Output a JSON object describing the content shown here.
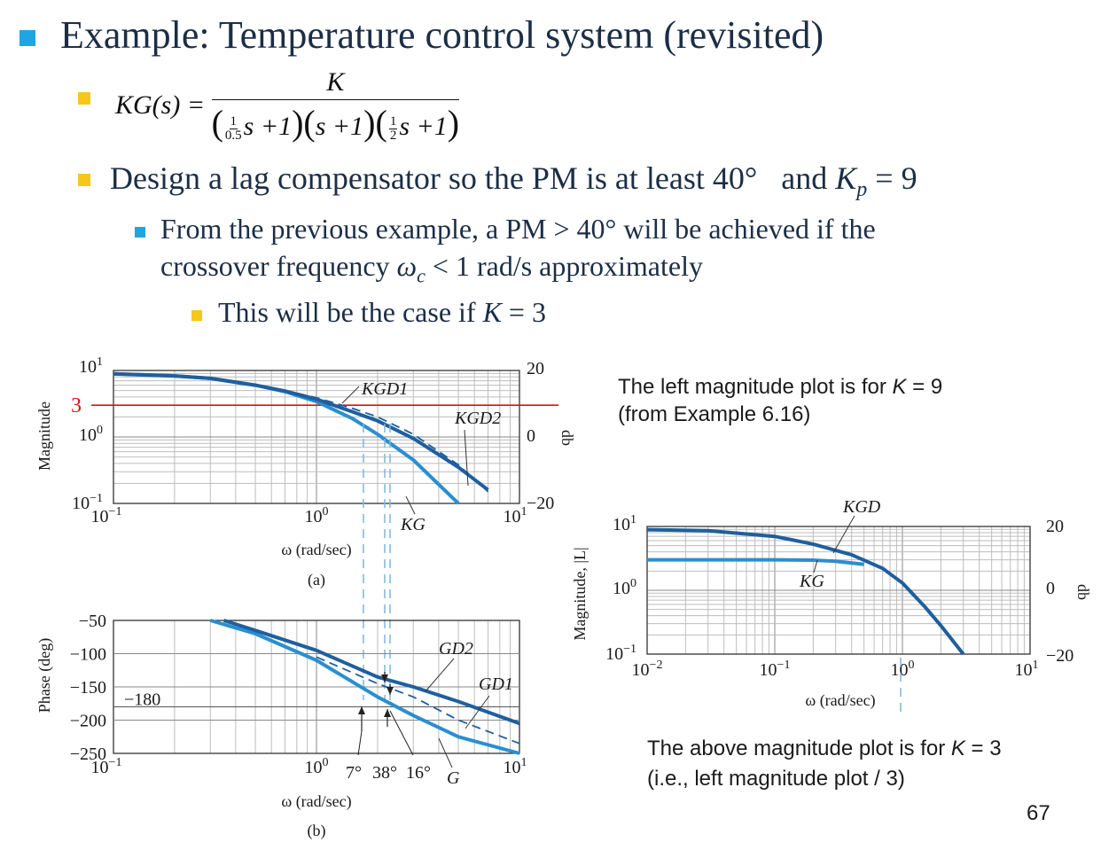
{
  "colors": {
    "bullet_main": "#1fa5e2",
    "bullet_sub": "#f6c71a",
    "text": "#1c2e46",
    "dark_curve": "#1f5f9e",
    "light_curve": "#2a8fcf",
    "red": "#e11010"
  },
  "slide": {
    "title": "Example:  Temperature control system (revisited)",
    "formula": {
      "lhs": "KG(s) =",
      "numerator": "K",
      "den1_num": "1",
      "den1_den": "0.5",
      "den_s1": "s +1",
      "den2": "s +1",
      "den3_num": "1",
      "den3_den": "2",
      "den_s3": "s +1"
    },
    "bullet2_a": "Design a lag compensator so the PM is at least 40°",
    "bullet2_b": "and ",
    "bullet2_kp": "K",
    "bullet2_p": "p",
    "bullet2_c": " = 9",
    "bullet3_line1": "From the previous example, a PM > 40°   will be achieved if the",
    "bullet3_line2a": "crossover frequency ",
    "bullet3_omega": "ω",
    "bullet3_c": "c",
    "bullet3_line2b": " < 1 rad/s approximately",
    "bullet4_a": "This will be the case if ",
    "bullet4_k": "K",
    "bullet4_b": " = 3",
    "note1_line1_a": "The left magnitude plot is for ",
    "note1_k": "K",
    "note1_line1_b": " = 9",
    "note1_line2": "(from Example 6.16)",
    "note2_line1_a": "The above magnitude plot is for ",
    "note2_k": "K",
    "note2_line1_b": " = 3",
    "note2_line2": "(i.e., left magnitude plot / 3)",
    "page_number": "67"
  },
  "chart_data": [
    {
      "id": "a",
      "type": "line",
      "scale": "log-log",
      "caption": "(a)",
      "xlabel": "ω (rad/sec)",
      "ylabel": "Magnitude",
      "ylabel_right": "db",
      "xlim": [
        0.1,
        10
      ],
      "ylim": [
        0.1,
        10
      ],
      "x_ticks": [
        {
          "base": "10",
          "exp": "−1"
        },
        {
          "base": "10",
          "exp": "0"
        },
        {
          "base": "10",
          "exp": "1"
        }
      ],
      "y_ticks": [
        {
          "base": "10",
          "exp": "1"
        },
        {
          "base": "10",
          "exp": "0"
        },
        {
          "base": "10",
          "exp": "−1"
        }
      ],
      "db_ticks": [
        "20",
        "0",
        "−20"
      ],
      "reference_line": {
        "value": 3,
        "label": "3",
        "color": "#e11010"
      },
      "series": [
        {
          "name": "KG",
          "style": "solid",
          "x": [
            0.1,
            0.2,
            0.3,
            0.5,
            0.7,
            1.0,
            1.5,
            2.0,
            3.0,
            5.0
          ],
          "y": [
            8.9,
            8.3,
            7.6,
            6.0,
            4.8,
            3.4,
            1.9,
            1.1,
            0.45,
            0.1
          ]
        },
        {
          "name": "KGD1",
          "style": "solid",
          "x": [
            0.1,
            0.2,
            0.3,
            0.5,
            0.7,
            1.0,
            1.5,
            2.0,
            3.0,
            5.0,
            7.0
          ],
          "y": [
            8.9,
            8.3,
            7.6,
            6.0,
            4.9,
            3.7,
            2.4,
            1.75,
            0.95,
            0.35,
            0.16
          ]
        },
        {
          "name": "KGD2",
          "style": "dashed",
          "x": [
            0.5,
            0.7,
            1.0,
            1.5,
            2.0,
            3.0,
            5.0,
            7.0
          ],
          "y": [
            6.0,
            5.0,
            3.9,
            2.7,
            2.0,
            1.1,
            0.38,
            0.15
          ]
        }
      ],
      "annotations": [
        "KGD1",
        "KGD2",
        "KG"
      ]
    },
    {
      "id": "b",
      "type": "line",
      "scale": "semilog-x",
      "caption": "(b)",
      "xlabel": "ω (rad/sec)",
      "ylabel": "Phase (deg)",
      "xlim": [
        0.1,
        10
      ],
      "ylim": [
        -250,
        -50
      ],
      "x_ticks": [
        {
          "base": "10",
          "exp": "−1"
        },
        {
          "base": "10",
          "exp": "0"
        },
        {
          "base": "10",
          "exp": "1"
        }
      ],
      "y_ticks": [
        "−50",
        "−100",
        "−150",
        "−200",
        "−250"
      ],
      "reference_line": {
        "value": -180,
        "label": "−180"
      },
      "series": [
        {
          "name": "G",
          "style": "solid",
          "x": [
            0.3,
            0.5,
            1.0,
            2.0,
            3.0,
            5.0,
            10.0
          ],
          "y": [
            -50,
            -70,
            -110,
            -165,
            -193,
            -225,
            -250
          ]
        },
        {
          "name": "GD2",
          "style": "solid",
          "x": [
            0.35,
            0.5,
            1.0,
            2.0,
            3.0,
            5.0,
            10.0
          ],
          "y": [
            -50,
            -65,
            -95,
            -135,
            -150,
            -172,
            -205
          ]
        },
        {
          "name": "GD1",
          "style": "dashed",
          "x": [
            1.0,
            2.0,
            3.0,
            5.0,
            10.0
          ],
          "y": [
            -105,
            -145,
            -165,
            -200,
            -235
          ]
        }
      ],
      "annotations": [
        "GD2",
        "GD1",
        "G",
        "7°",
        "38°",
        "16°"
      ]
    },
    {
      "id": "c",
      "type": "line",
      "scale": "log-log",
      "xlabel": "ω (rad/sec)",
      "ylabel": "Magnitude, |L|",
      "ylabel_right": "db",
      "xlim": [
        0.01,
        10
      ],
      "ylim": [
        0.1,
        10
      ],
      "x_ticks": [
        {
          "base": "10",
          "exp": "−2"
        },
        {
          "base": "10",
          "exp": "−1"
        },
        {
          "base": "10",
          "exp": "0"
        },
        {
          "base": "10",
          "exp": "1"
        }
      ],
      "y_ticks": [
        {
          "base": "10",
          "exp": "1"
        },
        {
          "base": "10",
          "exp": "0"
        },
        {
          "base": "10",
          "exp": "−1"
        }
      ],
      "db_ticks": [
        "20",
        "0",
        "−20"
      ],
      "series": [
        {
          "name": "KGD",
          "style": "solid",
          "x": [
            0.01,
            0.03,
            0.1,
            0.2,
            0.4,
            0.7,
            1.0,
            1.5,
            2.0,
            3.0
          ],
          "y": [
            8.9,
            8.6,
            7.0,
            5.3,
            3.6,
            2.2,
            1.3,
            0.55,
            0.28,
            0.1
          ]
        },
        {
          "name": "KG",
          "style": "solid",
          "x": [
            0.01,
            0.03,
            0.1,
            0.2,
            0.3,
            0.5
          ],
          "y": [
            3.0,
            3.0,
            3.0,
            2.97,
            2.85,
            2.55
          ]
        }
      ],
      "annotations": [
        "KGD",
        "KG"
      ]
    }
  ]
}
